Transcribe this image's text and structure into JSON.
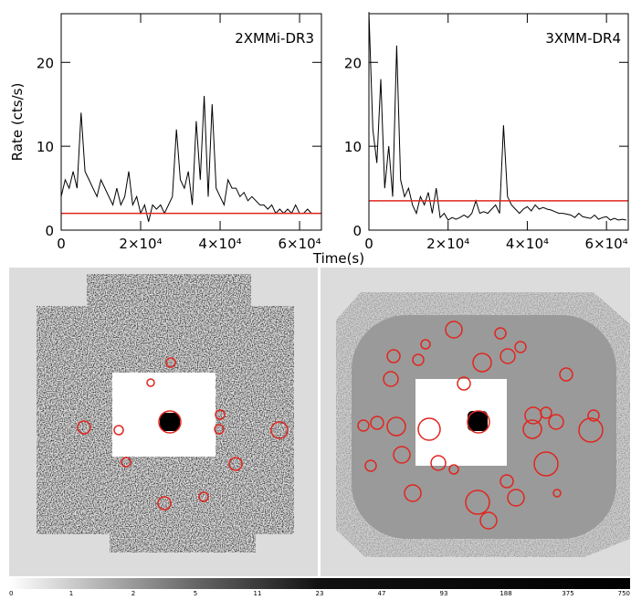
{
  "chart_data": [
    {
      "type": "line",
      "ylabel": "Rate (cts/s)",
      "annotation": "2XMMi-DR3",
      "xlim": [
        0,
        65500
      ],
      "ylim": [
        0,
        25.8
      ],
      "xticks": [
        0,
        {
          "value": 20000,
          "label": "2×10⁴"
        },
        {
          "value": 40000,
          "label": "4×10⁴"
        },
        {
          "value": 60000,
          "label": "6×10⁴"
        }
      ],
      "yticks": [
        0,
        10,
        20
      ],
      "x": [
        0,
        1000,
        2000,
        3000,
        4000,
        5000,
        6000,
        7000,
        8000,
        9000,
        10000,
        11000,
        12000,
        13000,
        14000,
        15000,
        16000,
        17000,
        18000,
        19000,
        20000,
        21000,
        22000,
        23000,
        24000,
        25000,
        26000,
        27000,
        28000,
        29000,
        30000,
        31000,
        32000,
        33000,
        34000,
        35000,
        36000,
        37000,
        38000,
        39000,
        40000,
        41000,
        42000,
        43000,
        44000,
        45000,
        46000,
        47000,
        48000,
        49000,
        50000,
        51000,
        52000,
        53000,
        54000,
        55000,
        56000,
        57000,
        58000,
        59000,
        60000,
        61000,
        62000,
        63000,
        64000,
        65000
      ],
      "series": [
        {
          "color": "#000000",
          "values": [
            4,
            6,
            5,
            7,
            5,
            14,
            7,
            6,
            5,
            4,
            6,
            5,
            4,
            3,
            5,
            3,
            4,
            7,
            3,
            4,
            2,
            3,
            1,
            3,
            2.5,
            3,
            2,
            3,
            4,
            12,
            6,
            5,
            7,
            3,
            13,
            6,
            16,
            4,
            15,
            5,
            4,
            3,
            6,
            5,
            5,
            4,
            4.5,
            3.5,
            4,
            3.5,
            3,
            3,
            2.5,
            3,
            2,
            2.5,
            2,
            2.5,
            2,
            3,
            2,
            2,
            2.5,
            2,
            2,
            2
          ]
        }
      ],
      "reference_line": 2,
      "reference_color": "#e0261f",
      "xlabel": "Time(s)"
    },
    {
      "type": "line",
      "annotation": "3XMM-DR4",
      "xlim": [
        0,
        65500
      ],
      "ylim": [
        0,
        25.8
      ],
      "xticks": [
        0,
        {
          "value": 20000,
          "label": "2×10⁴"
        },
        {
          "value": 40000,
          "label": "4×10⁴"
        },
        {
          "value": 60000,
          "label": "6×10⁴"
        }
      ],
      "yticks": [
        0,
        10,
        20
      ],
      "x": [
        0,
        1000,
        2000,
        3000,
        4000,
        5000,
        6000,
        7000,
        8000,
        9000,
        10000,
        11000,
        12000,
        13000,
        14000,
        15000,
        16000,
        17000,
        18000,
        19000,
        20000,
        21000,
        22000,
        23000,
        24000,
        25000,
        26000,
        27000,
        28000,
        29000,
        30000,
        31000,
        32000,
        33000,
        34000,
        35000,
        36000,
        37000,
        38000,
        39000,
        40000,
        41000,
        42000,
        43000,
        44000,
        45000,
        46000,
        47000,
        48000,
        49000,
        50000,
        51000,
        52000,
        53000,
        54000,
        55000,
        56000,
        57000,
        58000,
        59000,
        60000,
        61000,
        62000,
        63000,
        64000,
        65000
      ],
      "series": [
        {
          "color": "#000000",
          "values": [
            26,
            12,
            8,
            18,
            5,
            10,
            4,
            22,
            6,
            4,
            5,
            3,
            2,
            4,
            3,
            4.5,
            2,
            5,
            1.5,
            2,
            1.2,
            1.5,
            1.3,
            1.5,
            1.8,
            1.5,
            2,
            3.5,
            2,
            2.2,
            2,
            2.5,
            3,
            2,
            12.5,
            4,
            3,
            2.5,
            2,
            2.5,
            2.8,
            2.3,
            3,
            2.5,
            2.7,
            2.5,
            2.4,
            2.2,
            2,
            2,
            1.9,
            1.8,
            1.5,
            2,
            1.6,
            1.5,
            1.4,
            1.8,
            1.3,
            1.5,
            1.6,
            1.2,
            1.4,
            1.2,
            1.3,
            1.2
          ]
        }
      ],
      "reference_line": 3.5,
      "reference_color": "#e0261f"
    }
  ],
  "colorbar_labels": [
    "0",
    "1",
    "2",
    "5",
    "11",
    "23",
    "47",
    "93",
    "188",
    "375",
    "750"
  ]
}
